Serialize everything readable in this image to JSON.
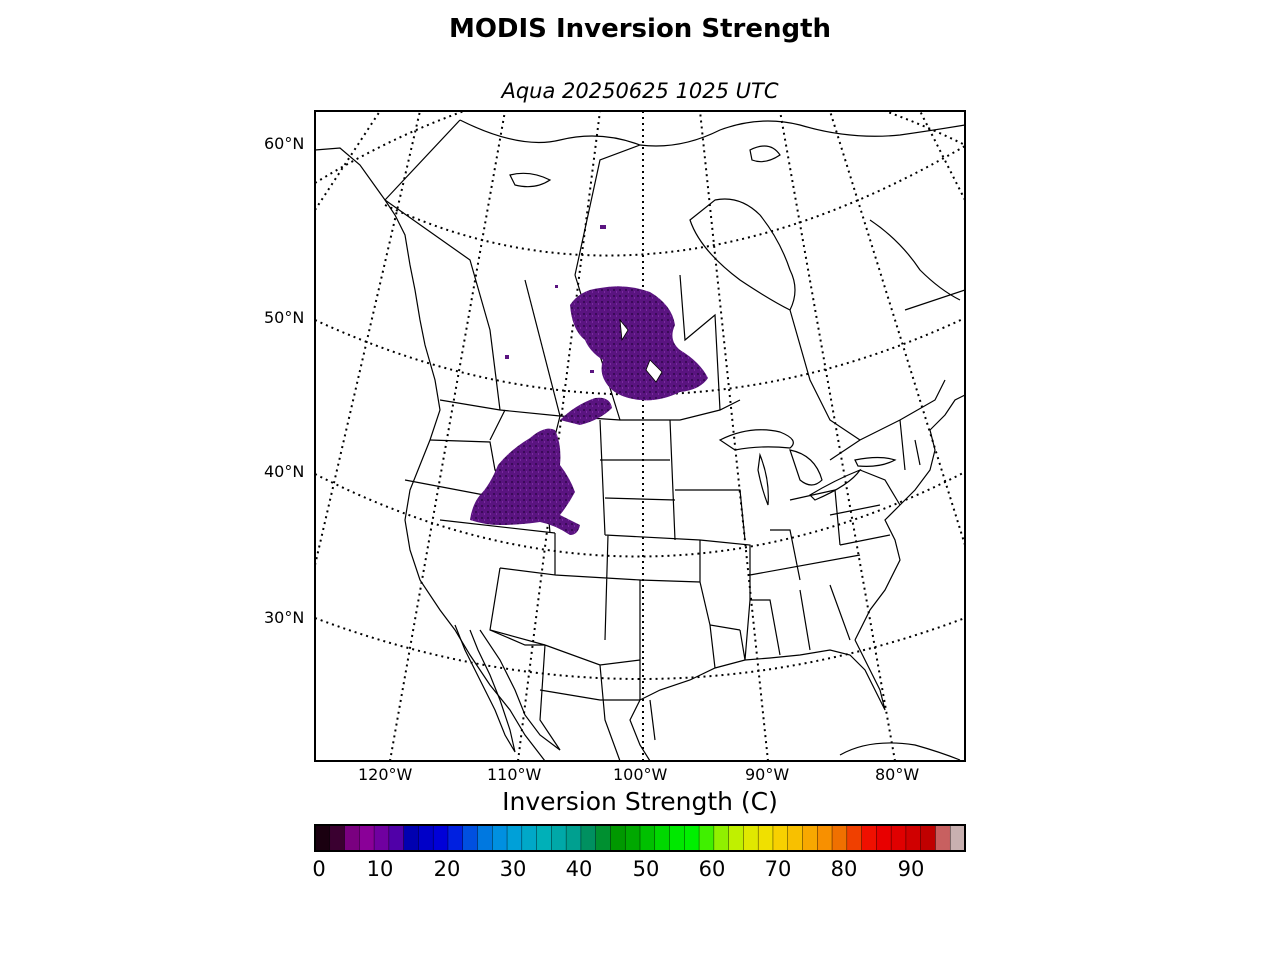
{
  "title": "MODIS Inversion Strength",
  "subtitle": "Aqua 20250625 1025 UTC",
  "lat_labels": [
    "60°N",
    "50°N",
    "40°N",
    "30°N"
  ],
  "lon_labels": [
    "120°W",
    "110°W",
    "100°W",
    "90°W",
    "80°W"
  ],
  "colorbar": {
    "label": "Inversion Strength (C)",
    "ticks": [
      "0",
      "10",
      "20",
      "30",
      "40",
      "50",
      "60",
      "70",
      "80",
      "90"
    ],
    "range": [
      0,
      98
    ],
    "colors": [
      "#1a0010",
      "#3a0030",
      "#7a0080",
      "#8a0098",
      "#7000a0",
      "#5000a8",
      "#0000b0",
      "#0000c8",
      "#0000d8",
      "#0020e0",
      "#0050e0",
      "#0078e0",
      "#0090e0",
      "#00a0d8",
      "#00a8c8",
      "#00b0b8",
      "#00a8a8",
      "#00a090",
      "#009060",
      "#009030",
      "#009800",
      "#00a800",
      "#00c000",
      "#00d800",
      "#00e800",
      "#00f000",
      "#40f000",
      "#90f000",
      "#c0f000",
      "#e0e800",
      "#f0e000",
      "#f8d000",
      "#f8c000",
      "#f8a800",
      "#f89000",
      "#f07000",
      "#f04000",
      "#f01000",
      "#e80000",
      "#e00000",
      "#d00000",
      "#c00000",
      "#c86060",
      "#c8b0b0"
    ]
  },
  "map": {
    "projection": "polar stereographic (North America)",
    "data_colors": {
      "inversion": "#5a1480",
      "inversion_dark": "#3a0a58"
    }
  }
}
